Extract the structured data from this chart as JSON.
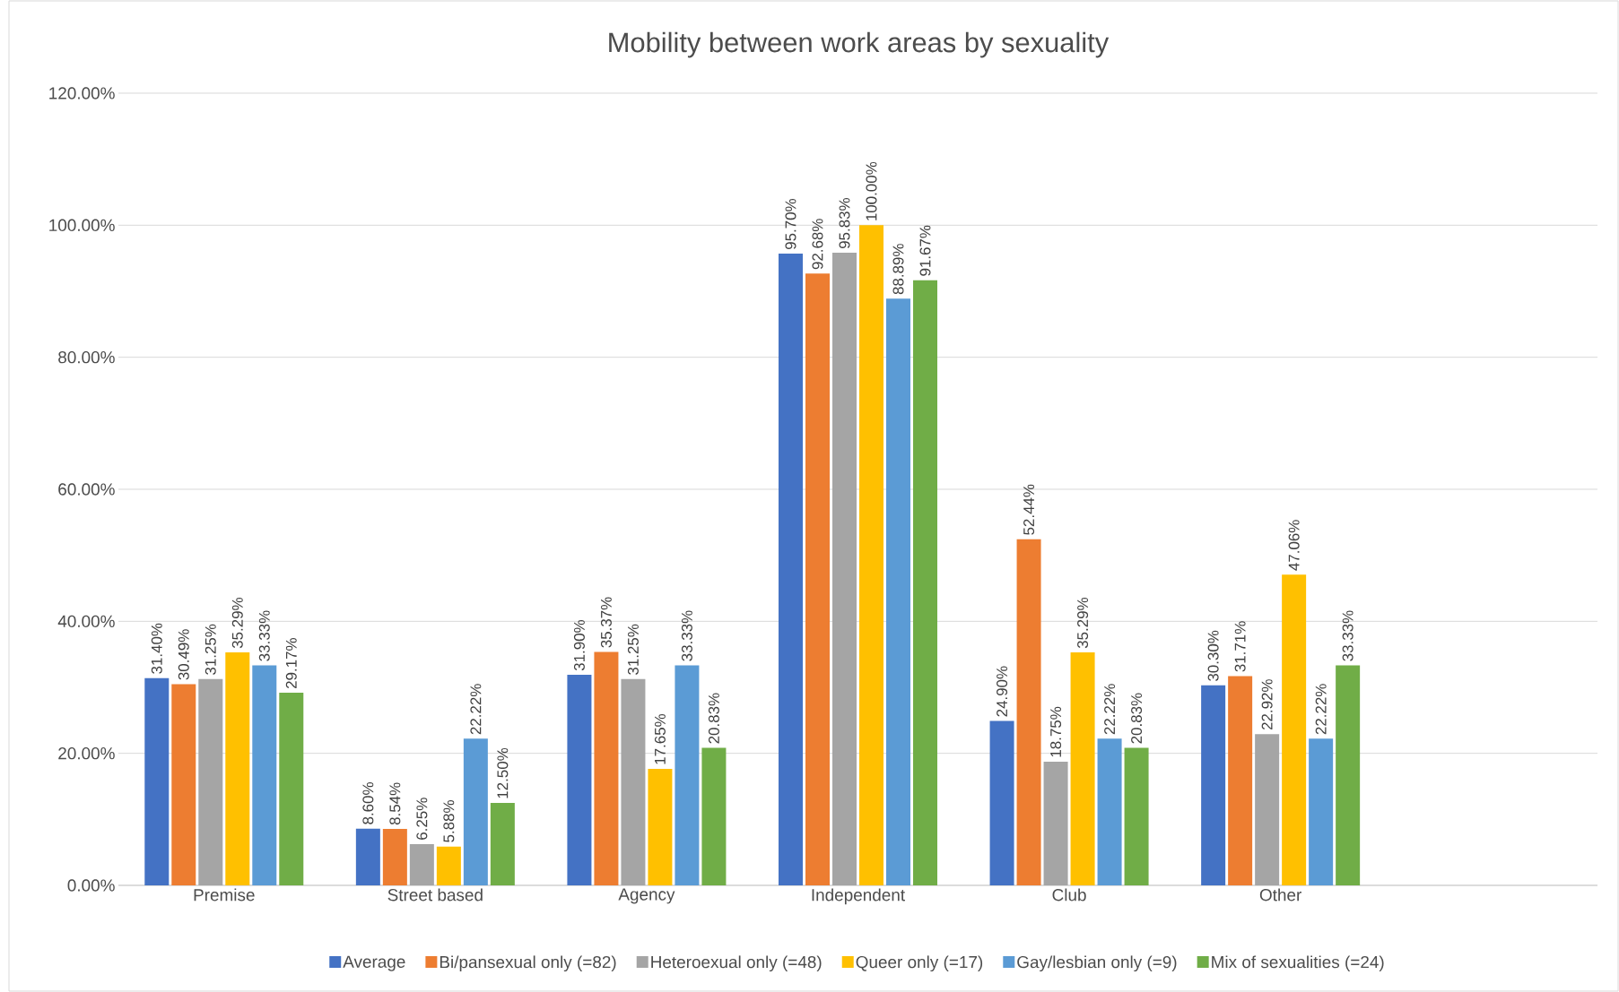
{
  "chart_data": {
    "type": "bar",
    "title": "Mobility between work areas by sexuality",
    "categories": [
      "Premise",
      "Street based",
      "Agency",
      "Independent",
      "Club",
      "Other",
      null
    ],
    "series": [
      {
        "name": "Average",
        "color": "#4472c4",
        "values": [
          31.4,
          8.6,
          31.9,
          95.7,
          24.9,
          30.3,
          null
        ],
        "value_labels": [
          "31.40%",
          "8.60%",
          "31.90%",
          "95.70%",
          "24.90%",
          "30.30%",
          null
        ]
      },
      {
        "name": "Bi/pansexual only (=82)",
        "color": "#ed7d31",
        "values": [
          30.49,
          8.54,
          35.37,
          92.68,
          52.44,
          31.71,
          null
        ],
        "value_labels": [
          "30.49%",
          "8.54%",
          "35.37%",
          "92.68%",
          "52.44%",
          "31.71%",
          null
        ]
      },
      {
        "name": "Heteroexual only (=48)",
        "color": "#a5a5a5",
        "values": [
          31.25,
          6.25,
          31.25,
          95.83,
          18.75,
          22.92,
          null
        ],
        "value_labels": [
          "31.25%",
          "6.25%",
          "31.25%",
          "95.83%",
          "18.75%",
          "22.92%",
          null
        ]
      },
      {
        "name": "Queer only (=17)",
        "color": "#ffc000",
        "values": [
          35.29,
          5.88,
          17.65,
          100.0,
          35.29,
          47.06,
          null
        ],
        "value_labels": [
          "35.29%",
          "5.88%",
          "17.65%",
          "100.00%",
          "35.29%",
          "47.06%",
          null
        ]
      },
      {
        "name": "Gay/lesbian only (=9)",
        "color": "#5b9bd5",
        "values": [
          33.33,
          22.22,
          33.33,
          88.89,
          22.22,
          22.22,
          null
        ],
        "value_labels": [
          "33.33%",
          "22.22%",
          "33.33%",
          "88.89%",
          "22.22%",
          "22.22%",
          null
        ]
      },
      {
        "name": "Mix of sexualities (=24)",
        "color": "#70ad47",
        "values": [
          29.17,
          12.5,
          20.83,
          91.67,
          20.83,
          33.33,
          null
        ],
        "value_labels": [
          "29.17%",
          "12.50%",
          "20.83%",
          "91.67%",
          "20.83%",
          "33.33%",
          null
        ]
      }
    ],
    "ylim": [
      0,
      120
    ],
    "yticks": [
      {
        "value": 0,
        "label": "0.00%"
      },
      {
        "value": 20,
        "label": "20.00%"
      },
      {
        "value": 40,
        "label": "40.00%"
      },
      {
        "value": 60,
        "label": "60.00%"
      },
      {
        "value": 80,
        "label": "80.00%"
      },
      {
        "value": 100,
        "label": "100.00%"
      },
      {
        "value": 120,
        "label": "120.00%"
      }
    ],
    "grid": "y",
    "legend": "bottom"
  }
}
